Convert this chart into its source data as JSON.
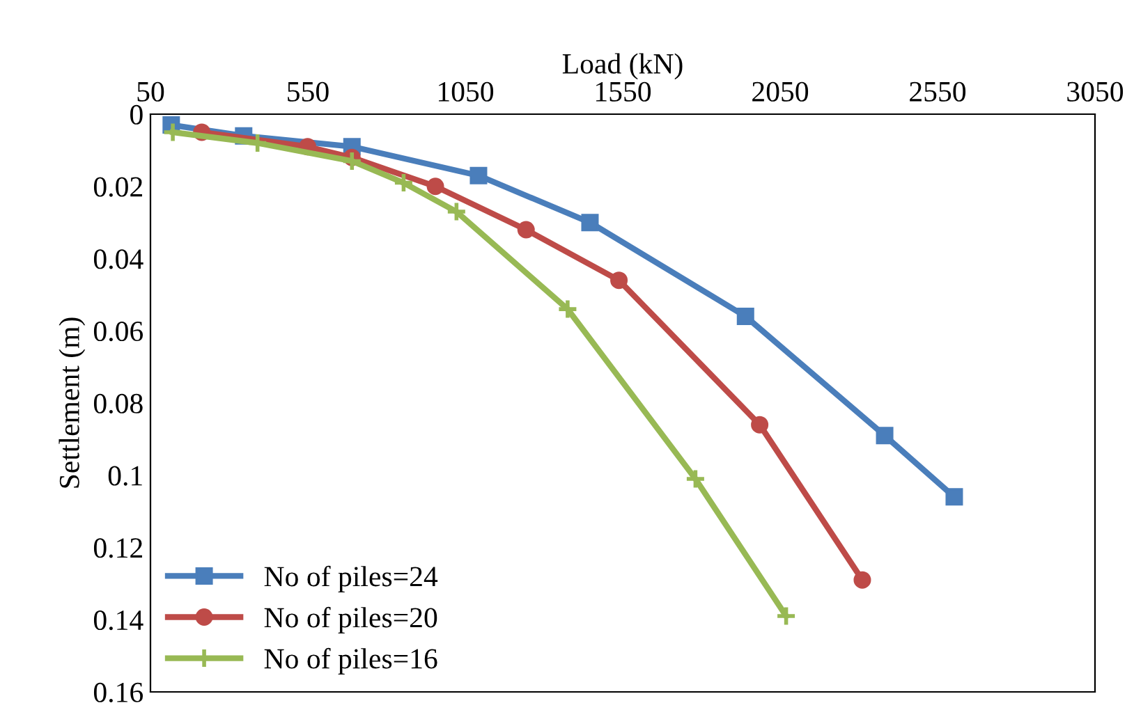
{
  "chart_data": {
    "type": "line",
    "xlabel": "Load (kN)",
    "ylabel": "Settlement (m)",
    "xlim": [
      50,
      3050
    ],
    "xticks": [
      50,
      550,
      1050,
      1550,
      2050,
      2550,
      3050
    ],
    "ylim": [
      0.16,
      0
    ],
    "yticks": [
      0,
      0.02,
      0.04,
      0.06,
      0.08,
      0.1,
      0.12,
      0.14,
      0.16
    ],
    "grid": false,
    "legend": "bottom left",
    "series": [
      {
        "name": "No of piles=24",
        "color": "#4a7ebb",
        "marker": "square",
        "x": [
          116,
          346,
          690,
          1092,
          1446,
          1940,
          2382,
          2603
        ],
        "values": [
          0.003,
          0.006,
          0.009,
          0.017,
          0.03,
          0.056,
          0.089,
          0.106
        ]
      },
      {
        "name": "No of piles=20",
        "color": "#be4b48",
        "marker": "circle",
        "x": [
          213,
          549,
          690,
          955,
          1243,
          1538,
          1985,
          2311
        ],
        "values": [
          0.005,
          0.009,
          0.012,
          0.02,
          0.032,
          0.046,
          0.086,
          0.129
        ]
      },
      {
        "name": "No of piles=16",
        "color": "#98b954",
        "marker": "cross",
        "x": [
          121,
          390,
          690,
          854,
          1022,
          1375,
          1781,
          2069
        ],
        "values": [
          0.005,
          0.008,
          0.013,
          0.019,
          0.027,
          0.054,
          0.101,
          0.139
        ]
      }
    ]
  }
}
